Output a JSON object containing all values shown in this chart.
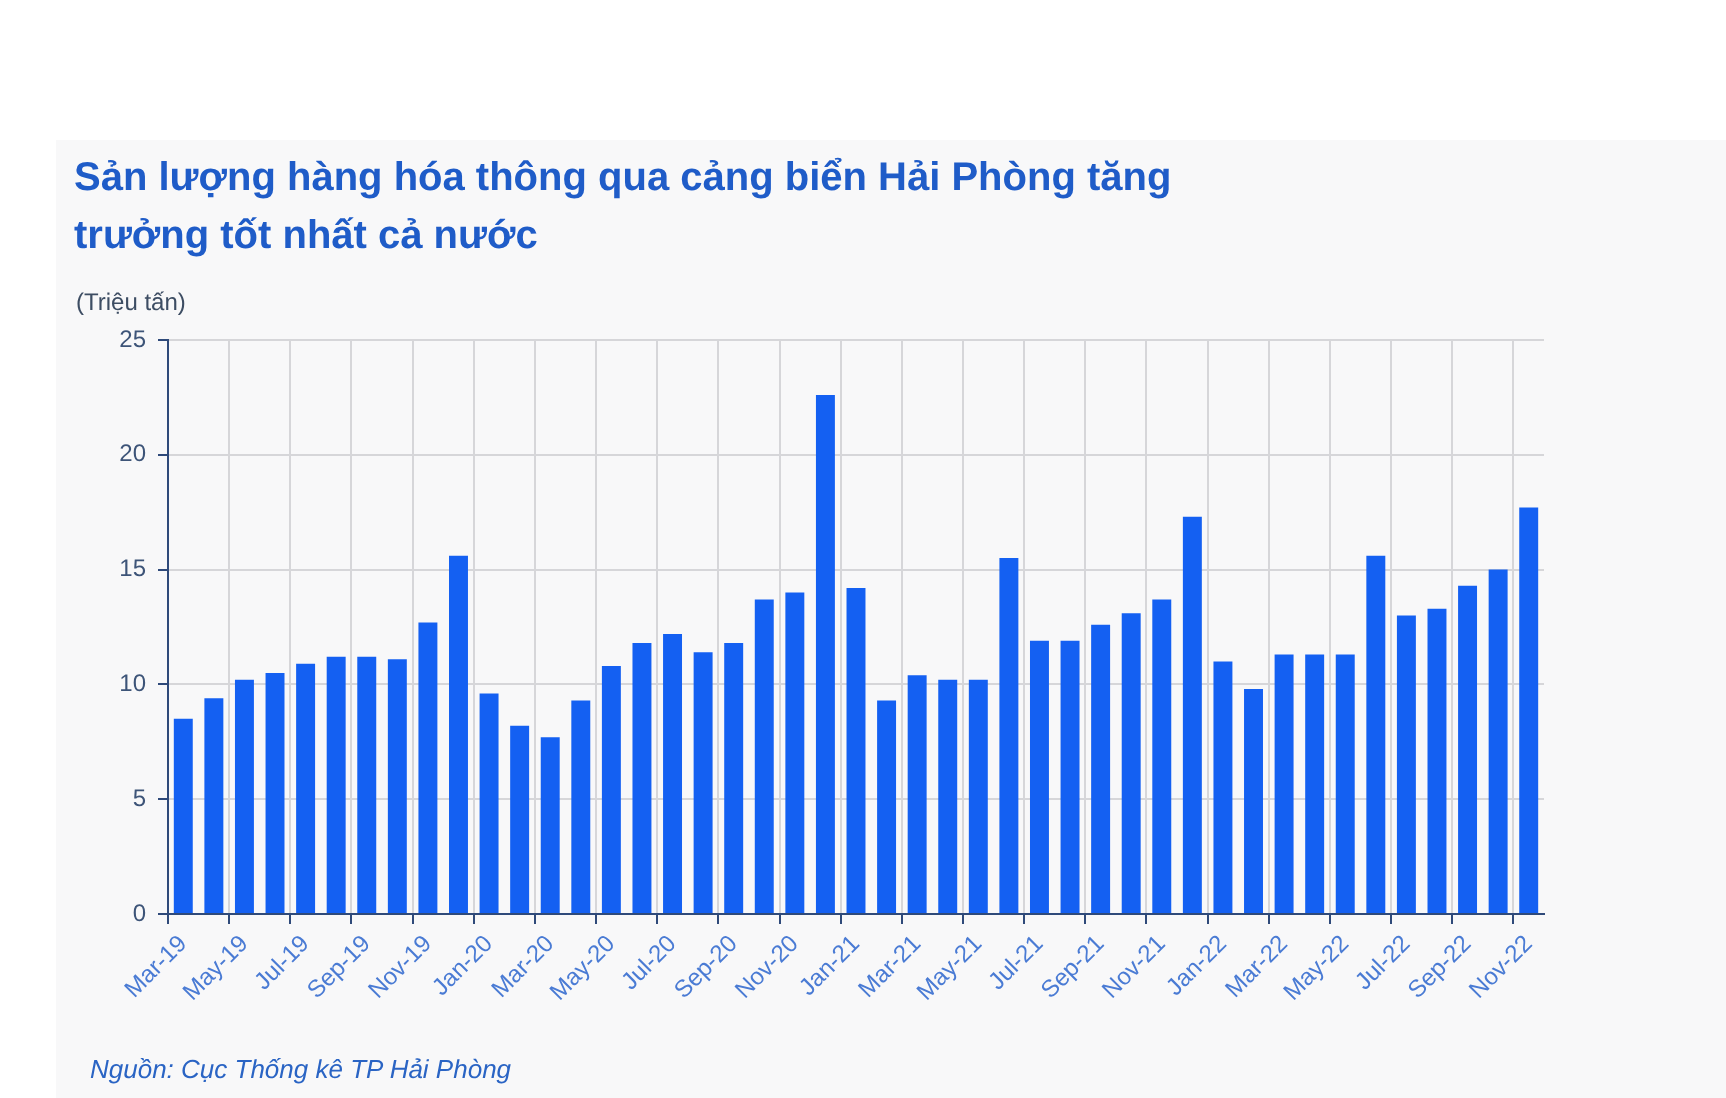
{
  "chart_data": {
    "type": "bar",
    "title": "Sản lượng hàng hóa thông qua cảng biển Hải Phòng tăng trưởng tốt nhất cả nước",
    "ylabel": "(Triệu tấn)",
    "annotations": [
      "Nguồn: Cục Thống kê TP Hải Phòng"
    ],
    "categories": [
      "Mar-19",
      null,
      "May-19",
      null,
      "Jul-19",
      null,
      "Sep-19",
      null,
      "Nov-19",
      null,
      "Jan-20",
      null,
      "Mar-20",
      null,
      "May-20",
      null,
      "Jul-20",
      null,
      "Sep-20",
      null,
      "Nov-20",
      null,
      "Jan-21",
      null,
      "Mar-21",
      null,
      "May-21",
      null,
      "Jul-21",
      null,
      "Sep-21",
      null,
      "Nov-21",
      null,
      "Jan-22",
      null,
      "Mar-22",
      null,
      "May-22",
      null,
      "Jul-22",
      null,
      "Sep-22",
      null,
      "Nov-22"
    ],
    "values": [
      8.5,
      9.4,
      10.2,
      10.5,
      10.9,
      11.2,
      11.2,
      11.1,
      12.7,
      15.6,
      9.6,
      8.2,
      7.7,
      9.3,
      10.8,
      11.8,
      12.2,
      11.4,
      11.8,
      13.7,
      14.0,
      22.6,
      14.2,
      9.3,
      10.4,
      10.2,
      10.2,
      15.5,
      11.9,
      11.9,
      12.6,
      13.1,
      13.7,
      17.3,
      11.0,
      9.8,
      11.3,
      11.3,
      11.3,
      15.6,
      13.0,
      13.3,
      14.3,
      15.0,
      17.7
    ],
    "color": "#1460f2",
    "ylim": [
      0,
      25
    ],
    "yticks": [
      0,
      5,
      10,
      15,
      20,
      25
    ],
    "grid": true
  }
}
